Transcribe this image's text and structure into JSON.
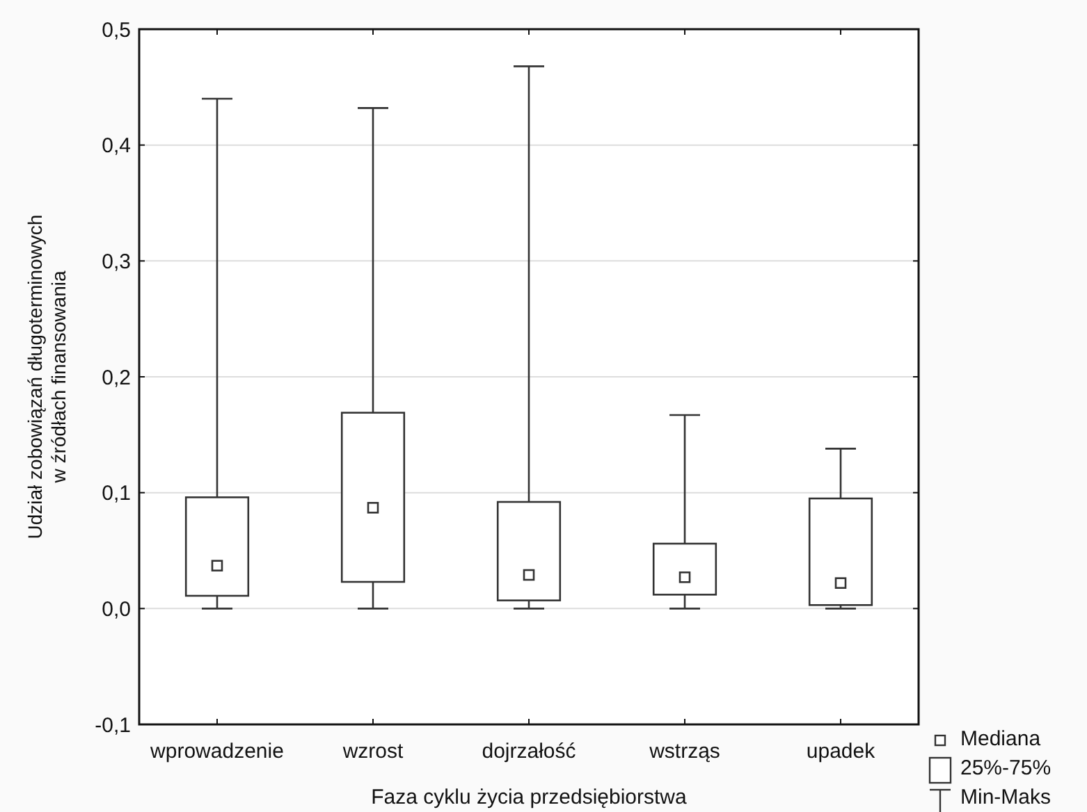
{
  "chart_data": {
    "type": "box",
    "xlabel": "Faza cyklu życia przedsiębiorstwa",
    "ylabel": "Udział zobowiązań długoterminowych\nw źródłach finansowania",
    "categories": [
      "wprowadzenie",
      "wzrost",
      "dojrzałość",
      "wstrząs",
      "upadek"
    ],
    "boxes": [
      {
        "low": 0,
        "q1": 0.011,
        "median": 0.037,
        "q3": 0.096,
        "high": 0.44
      },
      {
        "low": 0,
        "q1": 0.023,
        "median": 0.087,
        "q3": 0.169,
        "high": 0.432
      },
      {
        "low": 0,
        "q1": 0.007,
        "median": 0.029,
        "q3": 0.092,
        "high": 0.468
      },
      {
        "low": 0,
        "q1": 0.012,
        "median": 0.027,
        "q3": 0.056,
        "high": 0.167
      },
      {
        "low": 0,
        "q1": 0.003,
        "median": 0.022,
        "q3": 0.095,
        "high": 0.138
      }
    ],
    "color": "#333333",
    "ylim": [
      -0.1,
      0.5
    ],
    "yticks": [
      {
        "value": -0.1,
        "label": "-0,1"
      },
      {
        "value": 0,
        "label": "0,0"
      },
      {
        "value": 0.1,
        "label": "0,1"
      },
      {
        "value": 0.2,
        "label": "0,2"
      },
      {
        "value": 0.3,
        "label": "0,3"
      },
      {
        "value": 0.4,
        "label": "0,4"
      },
      {
        "value": 0.5,
        "label": "0,5"
      }
    ],
    "grid": "y",
    "annotations": [
      "Mediana",
      "25%-75%",
      "Min-Maks"
    ]
  }
}
